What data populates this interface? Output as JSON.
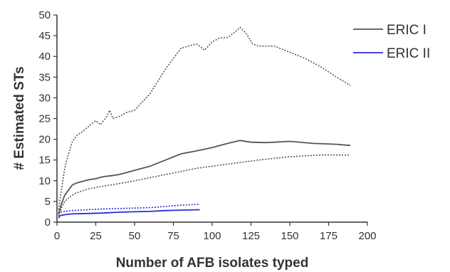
{
  "chart_data": {
    "type": "line",
    "title": "",
    "xlabel": "Number of AFB isolates typed",
    "ylabel": "# Estimated STs",
    "xlim": [
      0,
      200
    ],
    "ylim": [
      0,
      50
    ],
    "x_ticks": [
      "0",
      "25",
      "50",
      "75",
      "100",
      "125",
      "150",
      "175",
      "200"
    ],
    "y_ticks": [
      "0",
      "5",
      "10",
      "15",
      "20",
      "25",
      "30",
      "35",
      "40",
      "45",
      "50"
    ],
    "grid": false,
    "legend": {
      "position": "top-right"
    },
    "series": [
      {
        "name": "ERIC I",
        "color": "#555555",
        "style": "solid",
        "x": [
          1,
          3,
          5,
          8,
          10,
          13,
          16,
          20,
          25,
          30,
          35,
          40,
          45,
          50,
          60,
          70,
          80,
          90,
          100,
          110,
          118,
          125,
          135,
          150,
          165,
          180,
          189
        ],
        "y": [
          2,
          4.5,
          6.5,
          8,
          9,
          9.5,
          9.8,
          10.2,
          10.5,
          11,
          11.2,
          11.5,
          12,
          12.5,
          13.5,
          15,
          16.5,
          17.2,
          18,
          19,
          19.7,
          19.3,
          19.2,
          19.5,
          19,
          18.8,
          18.5
        ]
      },
      {
        "name": "",
        "color": "#555555",
        "style": "dotted",
        "x": [
          1,
          3,
          5,
          8,
          12,
          20,
          30,
          40,
          50,
          70,
          90,
          110,
          130,
          150,
          170,
          189
        ],
        "y": [
          1.5,
          3.5,
          5,
          6,
          7,
          8,
          8.7,
          9.3,
          10,
          11.5,
          13,
          14,
          15,
          15.8,
          16.2,
          16.2
        ]
      },
      {
        "name": "",
        "color": "#555555",
        "style": "dotted",
        "x": [
          1,
          3,
          5,
          7,
          10,
          13,
          17,
          20,
          25,
          28,
          32,
          34,
          36,
          40,
          45,
          50,
          55,
          60,
          65,
          70,
          75,
          80,
          85,
          90,
          95,
          100,
          105,
          110,
          115,
          118,
          122,
          126,
          130,
          140,
          150,
          160,
          170,
          180,
          189
        ],
        "y": [
          3,
          8,
          13,
          16,
          19.5,
          21,
          22,
          23,
          24.5,
          23.5,
          25.5,
          27,
          25,
          25.5,
          26.5,
          27,
          29,
          31,
          34,
          37,
          39.5,
          42,
          42.5,
          43,
          41.5,
          43.5,
          44.5,
          44.5,
          46,
          47,
          45.5,
          43,
          42.5,
          42.5,
          41,
          39.5,
          37.5,
          35,
          33
        ]
      },
      {
        "name": "ERIC II",
        "color": "#2b2bd6",
        "style": "solid",
        "x": [
          1,
          2,
          5,
          10,
          20,
          30,
          40,
          50,
          60,
          70,
          80,
          92
        ],
        "y": [
          1,
          1.6,
          1.8,
          2,
          2.1,
          2.2,
          2.4,
          2.5,
          2.6,
          2.8,
          2.9,
          3
        ]
      },
      {
        "name": "",
        "color": "#2b2bd6",
        "style": "dotted",
        "x": [
          1,
          2,
          5,
          10,
          20,
          30,
          40,
          50,
          60,
          70,
          80,
          92
        ],
        "y": [
          2,
          2.4,
          2.6,
          2.8,
          3,
          3.2,
          3.3,
          3.4,
          3.5,
          3.8,
          4.1,
          4.3
        ]
      }
    ]
  }
}
